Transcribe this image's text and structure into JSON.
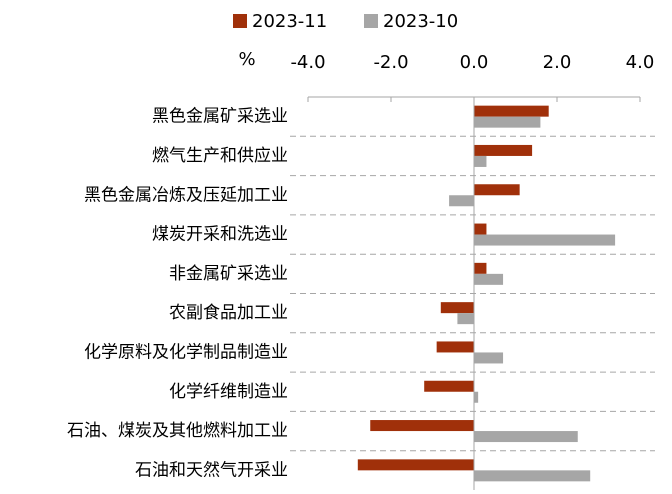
{
  "chart_data": {
    "type": "barh",
    "unit_label": "%",
    "categories": [
      "黑色金属矿采选业",
      "燃气生产和供应业",
      "黑色金属冶炼及压延加工业",
      "煤炭开采和洗选业",
      "非金属矿采选业",
      "农副食品加工业",
      "化学原料及化学制品制造业",
      "化学纤维制造业",
      "石油、煤炭及其他燃料加工业",
      "石油和天然气开采业"
    ],
    "series": [
      {
        "name": "2023-11",
        "color": "#a0300a",
        "values": [
          1.8,
          1.4,
          1.1,
          0.3,
          0.3,
          -0.8,
          -0.9,
          -1.2,
          -2.5,
          -2.8
        ]
      },
      {
        "name": "2023-10",
        "color": "#a6a6a6",
        "values": [
          1.6,
          0.3,
          -0.6,
          3.4,
          0.7,
          -0.4,
          0.7,
          0.1,
          2.5,
          2.8
        ]
      }
    ],
    "xlim": [
      -4,
      4
    ],
    "xticks": [
      {
        "value": -4,
        "label": "-4.0"
      },
      {
        "value": -2,
        "label": "-2.0"
      },
      {
        "value": 0,
        "label": "0.0"
      },
      {
        "value": 2,
        "label": "2.0"
      },
      {
        "value": 4,
        "label": "4.0"
      }
    ],
    "legend": "top"
  }
}
